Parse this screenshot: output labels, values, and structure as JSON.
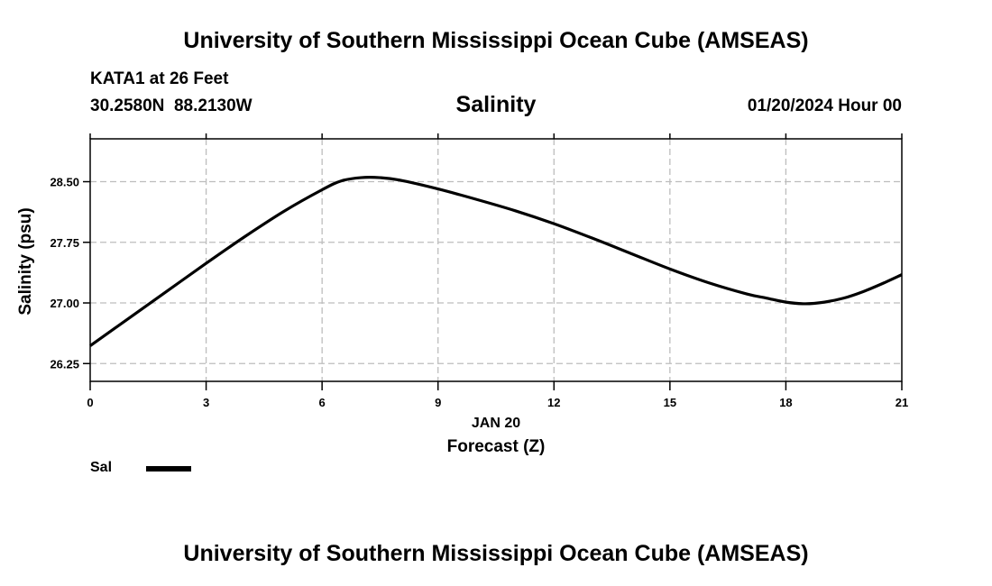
{
  "header": {
    "top_title": "University of Southern Mississippi Ocean Cube (AMSEAS)",
    "station": "KATA1 at 26 Feet",
    "coords": "30.2580N  88.2130W",
    "datetime": "01/20/2024 Hour 00",
    "bottom_title": "University of Southern Mississippi Ocean Cube (AMSEAS)"
  },
  "chart_data": {
    "type": "line",
    "title": "Salinity",
    "xlabel": "Forecast (Z)",
    "xlabel_date": "JAN 20",
    "ylabel": "Salinity (psu)",
    "xlim": [
      0,
      21
    ],
    "ylim": [
      26.03,
      29.03
    ],
    "xticks": [
      0,
      3,
      6,
      9,
      12,
      15,
      18,
      21
    ],
    "xtick_labels": [
      "0",
      "3",
      "6",
      "9",
      "12",
      "15",
      "18",
      "21"
    ],
    "yticks": [
      26.25,
      27.0,
      27.75,
      28.5
    ],
    "ytick_labels": [
      "26.25",
      "27.00",
      "27.75",
      "28.50"
    ],
    "grid": true,
    "legend_position": "bottom-left",
    "series": [
      {
        "name": "Sal",
        "color": "#000000",
        "x": [
          0,
          1,
          2,
          3,
          4,
          5,
          6,
          6.5,
          7,
          7.5,
          8,
          9,
          10,
          11,
          12,
          13,
          14,
          15,
          16,
          17,
          17.5,
          18,
          18.5,
          19,
          19.5,
          20,
          20.5,
          21
        ],
        "y": [
          26.47,
          26.81,
          27.15,
          27.49,
          27.82,
          28.13,
          28.4,
          28.51,
          28.55,
          28.55,
          28.52,
          28.41,
          28.28,
          28.14,
          27.98,
          27.8,
          27.61,
          27.42,
          27.25,
          27.11,
          27.06,
          27.01,
          26.99,
          27.01,
          27.06,
          27.14,
          27.24,
          27.35
        ]
      }
    ]
  }
}
